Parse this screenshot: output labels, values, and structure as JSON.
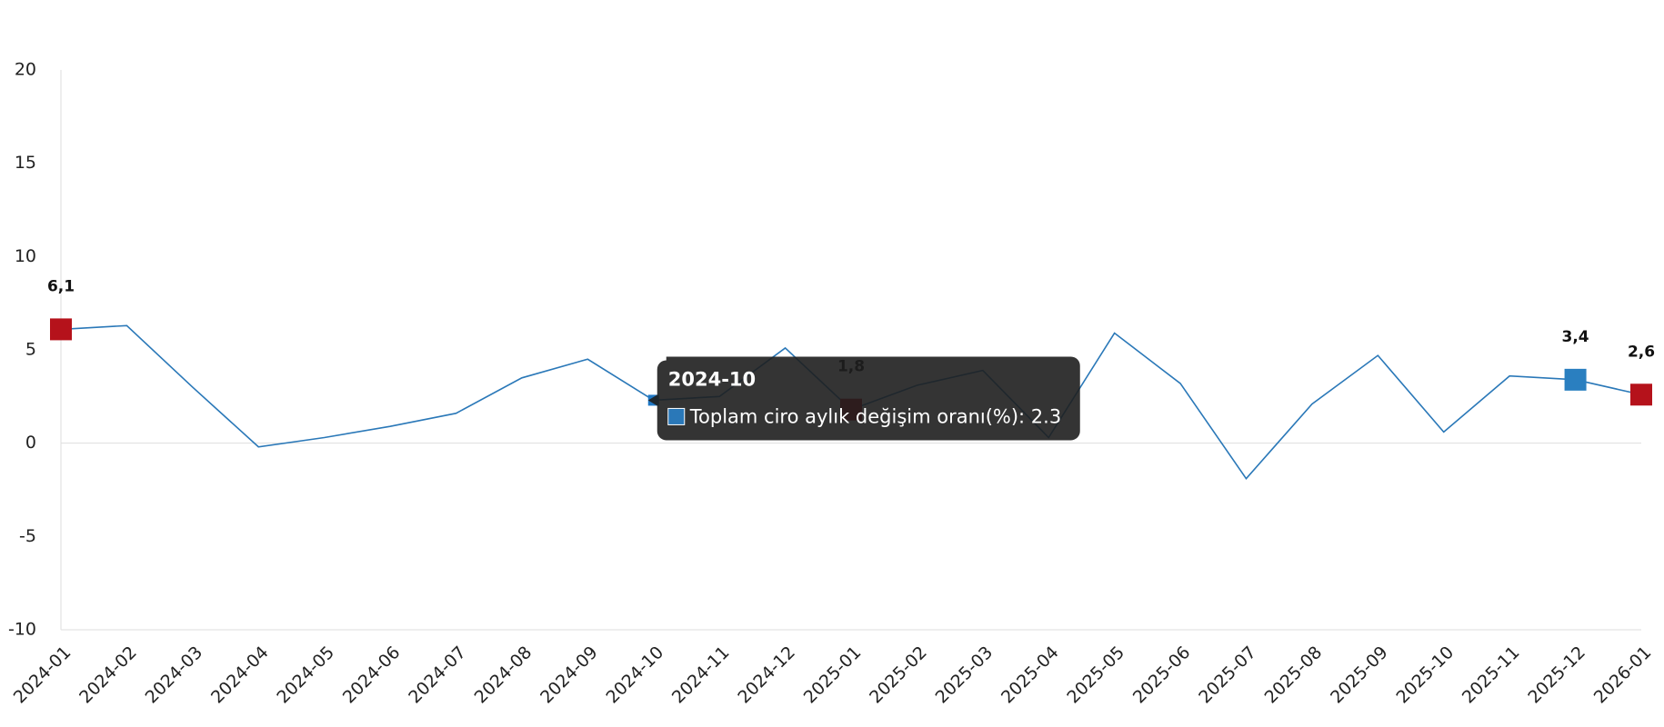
{
  "chart_data": {
    "type": "line",
    "categories": [
      "2024-01",
      "2024-02",
      "2024-03",
      "2024-04",
      "2024-05",
      "2024-06",
      "2024-07",
      "2024-08",
      "2024-09",
      "2024-10",
      "2024-11",
      "2024-12",
      "2025-01",
      "2025-02",
      "2025-03",
      "2025-04",
      "2025-05",
      "2025-06",
      "2025-07",
      "2025-08",
      "2025-09",
      "2025-10",
      "2025-11",
      "2025-12",
      "2026-01"
    ],
    "series": [
      {
        "name": "Toplam ciro aylık değişim oranı(%)",
        "color": "#2a78b8",
        "values": [
          6.1,
          6.3,
          3.0,
          -0.2,
          0.3,
          0.9,
          1.6,
          3.5,
          4.5,
          2.3,
          2.5,
          5.1,
          1.8,
          3.1,
          3.9,
          0.3,
          5.9,
          3.2,
          -1.9,
          2.1,
          4.7,
          0.6,
          3.6,
          3.4,
          2.6
        ],
        "value_labels": [
          "6,1",
          null,
          null,
          null,
          null,
          null,
          null,
          null,
          null,
          null,
          null,
          null,
          "1,8",
          null,
          null,
          null,
          null,
          null,
          null,
          null,
          null,
          null,
          null,
          "3,4",
          "2,6"
        ],
        "marker_colors": [
          "#b5121b",
          null,
          null,
          null,
          null,
          null,
          null,
          null,
          null,
          "#1f77c4",
          null,
          null,
          "#b5121b",
          null,
          null,
          null,
          null,
          null,
          null,
          null,
          null,
          null,
          null,
          "#2a7fc0",
          "#b5121b"
        ]
      }
    ],
    "ylim": [
      -10,
      20
    ],
    "yticks": [
      -10,
      -5,
      0,
      5,
      10,
      15,
      20
    ],
    "tooltip": {
      "title": "2024-10",
      "text": "Toplam ciro aylık değişim oranı(%): 2.3"
    }
  }
}
